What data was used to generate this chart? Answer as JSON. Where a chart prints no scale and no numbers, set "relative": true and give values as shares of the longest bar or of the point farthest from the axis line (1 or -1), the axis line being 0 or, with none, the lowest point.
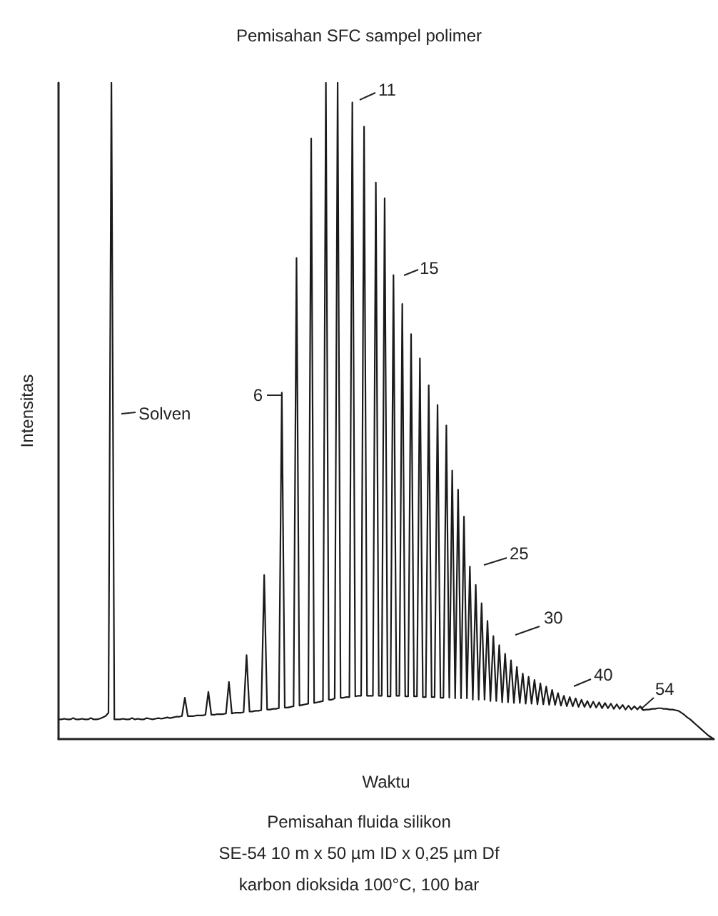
{
  "chart_data": {
    "type": "line",
    "relative": true,
    "title": "Pemisahan SFC sampel polimer",
    "xlabel": "Waktu",
    "ylabel": "Intensitas",
    "annotations": [
      "Solven",
      "6",
      "11",
      "15",
      "25",
      "30",
      "40",
      "54",
      "Pemisahan fluida silikon",
      "SE-54 10 m x 50 µm ID x 0,25 µm Df",
      "karbon dioksida 100°C, 100 bar"
    ],
    "marker": "none",
    "line_style": "solid",
    "categories": [
      null,
      null,
      null,
      null,
      null,
      null,
      null,
      null,
      null,
      null,
      null,
      null,
      null,
      null,
      null,
      null,
      null,
      null,
      null,
      null,
      null,
      null,
      null,
      null,
      null,
      null,
      null,
      null,
      null,
      null,
      null,
      null,
      null,
      null,
      null,
      null,
      null,
      null,
      null,
      null,
      null,
      null,
      null,
      null,
      null,
      null,
      null,
      null,
      null,
      null,
      null,
      null,
      null,
      null,
      null,
      null,
      null,
      null,
      null,
      null,
      null,
      null,
      null,
      null,
      null,
      null,
      null,
      null,
      null,
      null,
      null,
      null,
      null,
      null,
      null,
      null,
      null,
      null,
      null,
      null,
      null,
      null,
      null,
      null,
      null,
      null,
      null,
      null,
      null,
      null,
      null,
      null,
      null,
      null,
      null,
      null,
      null,
      null,
      null,
      null,
      null,
      null,
      null,
      null,
      null,
      null,
      null,
      null,
      null,
      null,
      null,
      null,
      null,
      null,
      null,
      null,
      null,
      null,
      null,
      null,
      null,
      null,
      null,
      null,
      null,
      null,
      null,
      null,
      null,
      null,
      null,
      null,
      null,
      null,
      null,
      null,
      null,
      null,
      null,
      null,
      null,
      null,
      null,
      null,
      null,
      null,
      null,
      null,
      null,
      null,
      null,
      null,
      null,
      null,
      null,
      null,
      null,
      null,
      null,
      null,
      null,
      null,
      null,
      null,
      null,
      null,
      null,
      null,
      null,
      null,
      null,
      null,
      null,
      null,
      null,
      null,
      null,
      null,
      null,
      null,
      null,
      null,
      null,
      null,
      null,
      null,
      null,
      null,
      null,
      null,
      null,
      null,
      null,
      null,
      null,
      null,
      null,
      null,
      null,
      null,
      null,
      null,
      null,
      null,
      null,
      null,
      null,
      null,
      null,
      null,
      null,
      null,
      null,
      null,
      null,
      null,
      null,
      null,
      null,
      null,
      null,
      null,
      null,
      null
    ],
    "series": [
      {
        "color": "#1a1a1a",
        "values": [
          0.03,
          0.03,
          0.031,
          0.03,
          0.03,
          0.032,
          0.03,
          0.03,
          0.031,
          0.03,
          0.03,
          0.032,
          0.03,
          0.03,
          0.031,
          0.033,
          0.035,
          0.04,
          1,
          0.03,
          0.03,
          0.03,
          0.031,
          0.03,
          0.03,
          0.032,
          0.03,
          0.031,
          0.03,
          0.03,
          0.032,
          0.031,
          0.03,
          0.031,
          0.032,
          0.031,
          0.032,
          0.033,
          0.032,
          0.033,
          0.034,
          0.034,
          0.035,
          0.063,
          0.035,
          0.035,
          0.035,
          0.036,
          0.036,
          0.036,
          0.037,
          0.072,
          0.037,
          0.037,
          0.038,
          0.038,
          0.038,
          0.039,
          0.087,
          0.039,
          0.04,
          0.04,
          0.04,
          0.041,
          0.128,
          0.042,
          0.042,
          0.043,
          0.043,
          0.044,
          0.25,
          0.045,
          0.045,
          0.046,
          0.046,
          0.047,
          0.528,
          0.048,
          0.048,
          0.049,
          0.05,
          0.733,
          0.051,
          0.052,
          0.053,
          0.054,
          0.915,
          0.055,
          0.056,
          0.057,
          0.058,
          1,
          0.06,
          0.06,
          0.062,
          1,
          0.063,
          0.063,
          0.064,
          0.064,
          0.97,
          0.065,
          0.066,
          0.066,
          0.933,
          0.066,
          0.066,
          0.066,
          0.848,
          0.066,
          0.066,
          0.824,
          0.065,
          0.065,
          0.707,
          0.066,
          0.066,
          0.663,
          0.065,
          0.065,
          0.617,
          0.065,
          0.065,
          0.58,
          0.064,
          0.064,
          0.539,
          0.064,
          0.064,
          0.509,
          0.063,
          0.063,
          0.478,
          0.063,
          0.409,
          0.062,
          0.38,
          0.062,
          0.339,
          0.062,
          0.263,
          0.06,
          0.235,
          0.06,
          0.207,
          0.06,
          0.18,
          0.058,
          0.157,
          0.058,
          0.143,
          0.056,
          0.13,
          0.056,
          0.12,
          0.055,
          0.11,
          0.055,
          0.1,
          0.054,
          0.095,
          0.054,
          0.09,
          0.053,
          0.085,
          0.053,
          0.08,
          0.052,
          0.075,
          0.052,
          0.07,
          0.051,
          0.066,
          0.05,
          0.064,
          0.05,
          0.062,
          0.049,
          0.06,
          0.049,
          0.058,
          0.048,
          0.057,
          0.048,
          0.056,
          0.047,
          0.055,
          0.047,
          0.054,
          0.046,
          0.053,
          0.046,
          0.052,
          0.045,
          0.051,
          0.045,
          0.05,
          0.045,
          0.05,
          0.044,
          0.045,
          0.045,
          0.046,
          0.046,
          0.047,
          0.047,
          0.046,
          0.046,
          0.045,
          0.045,
          0.044,
          0.043,
          0.04,
          0.037,
          0.033,
          0.03,
          0.026,
          0.022,
          0.018,
          0.014,
          0.01,
          0.006,
          0.003,
          0
        ]
      }
    ]
  }
}
